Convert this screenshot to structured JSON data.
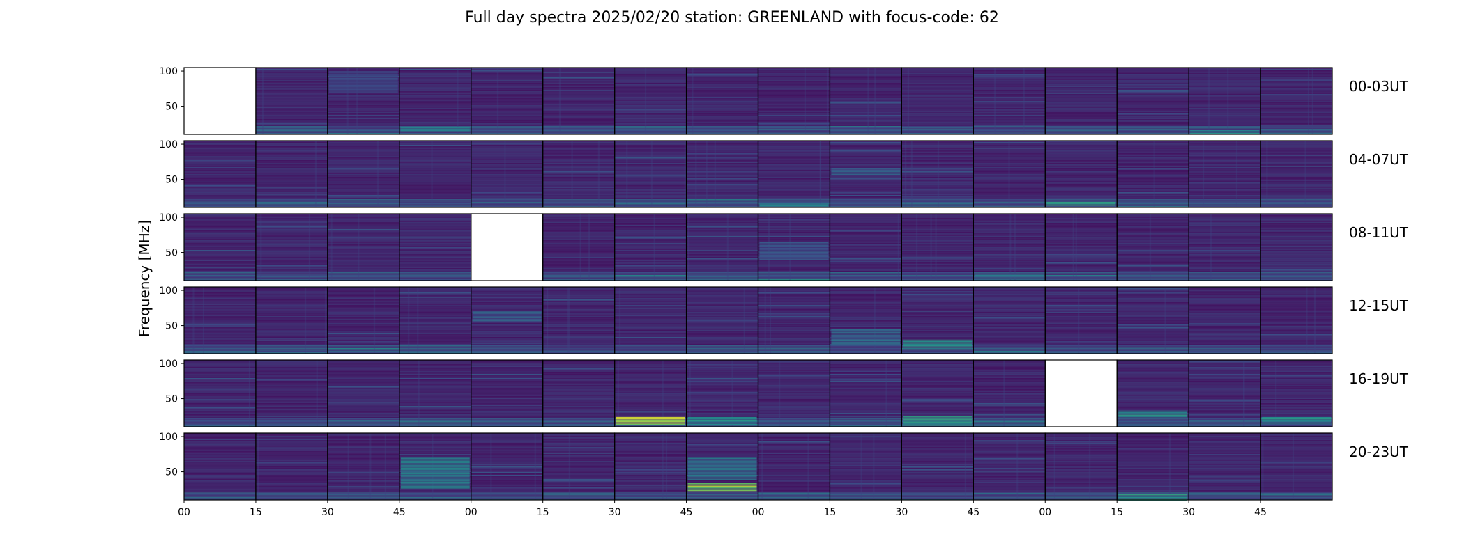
{
  "chart_data": {
    "type": "heatmap",
    "title": "Full day spectra 2025/02/20 station: GREENLAND with focus-code: 62",
    "ylabel": "Frequency [MHz]",
    "xlabel": "",
    "ylim": [
      10,
      105
    ],
    "yticks": [
      50,
      100
    ],
    "xticks": [
      "00",
      "15",
      "30",
      "45",
      "00",
      "15",
      "30",
      "45",
      "00",
      "15",
      "30",
      "45",
      "00",
      "15",
      "30",
      "45"
    ],
    "colormap": "viridis",
    "colors": {
      "low": "#440154",
      "mid": "#3b528b",
      "teal": "#21918c",
      "green": "#5ec962",
      "high": "#fde725"
    },
    "rows": [
      {
        "label": "00-03UT",
        "missing_panels": [
          0
        ],
        "events": [
          {
            "panel": 2,
            "freq": [
              70,
              100
            ],
            "level": 0.25
          },
          {
            "panel": 14,
            "freq": [
              12,
              16
            ],
            "level": 0.55
          },
          {
            "panel": 3,
            "freq": [
              15,
              20
            ],
            "level": 0.45
          }
        ]
      },
      {
        "label": "04-07UT",
        "missing_panels": [],
        "events": [
          {
            "panel": 8,
            "freq": [
              12,
              17
            ],
            "level": 0.5
          },
          {
            "panel": 9,
            "freq": [
              58,
              66
            ],
            "level": 0.35
          },
          {
            "panel": 12,
            "freq": [
              14,
              18
            ],
            "level": 0.6
          }
        ]
      },
      {
        "label": "08-11UT",
        "missing_panels": [
          4
        ],
        "events": [
          {
            "panel": 8,
            "freq": [
              40,
              65
            ],
            "level": 0.3
          },
          {
            "panel": 11,
            "freq": [
              14,
              20
            ],
            "level": 0.45
          }
        ]
      },
      {
        "label": "12-15UT",
        "missing_panels": [],
        "events": [
          {
            "panel": 9,
            "freq": [
              22,
              45
            ],
            "level": 0.4
          },
          {
            "panel": 10,
            "freq": [
              20,
              30
            ],
            "level": 0.65
          },
          {
            "panel": 4,
            "freq": [
              55,
              70
            ],
            "level": 0.35
          }
        ]
      },
      {
        "label": "16-19UT",
        "missing_panels": [
          12
        ],
        "events": [
          {
            "panel": 6,
            "freq": [
              14,
              24
            ],
            "level": 0.95
          },
          {
            "panel": 7,
            "freq": [
              14,
              24
            ],
            "level": 0.55
          },
          {
            "panel": 10,
            "freq": [
              12,
              25
            ],
            "level": 0.6
          },
          {
            "panel": 13,
            "freq": [
              25,
              33
            ],
            "level": 0.6
          },
          {
            "panel": 15,
            "freq": [
              15,
              24
            ],
            "level": 0.55
          }
        ]
      },
      {
        "label": "20-23UT",
        "missing_panels": [],
        "events": [
          {
            "panel": 7,
            "freq": [
              24,
              34
            ],
            "level": 0.95
          },
          {
            "panel": 7,
            "freq": [
              40,
              70
            ],
            "level": 0.45
          },
          {
            "panel": 3,
            "freq": [
              25,
              70
            ],
            "level": 0.5
          },
          {
            "panel": 13,
            "freq": [
              10,
              18
            ],
            "level": 0.6
          }
        ]
      }
    ]
  }
}
